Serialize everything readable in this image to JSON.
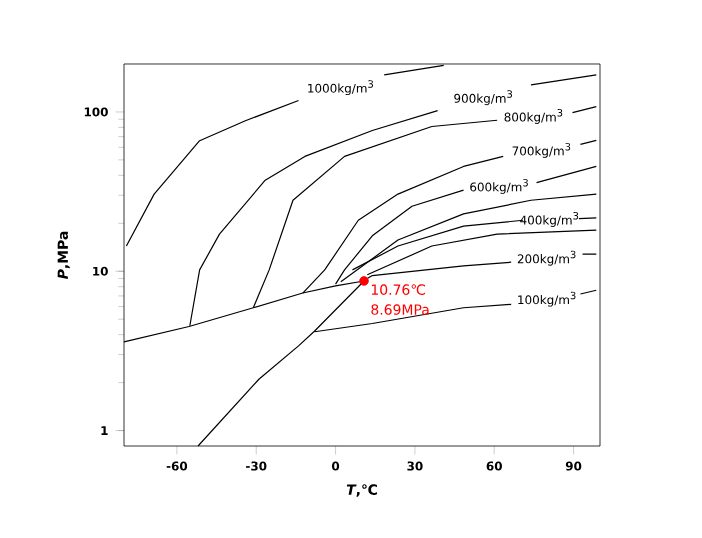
{
  "chart_data": {
    "type": "line",
    "xlabel": "*T*,℃",
    "ylabel": "*P*,MPa",
    "log": "y",
    "grid": false,
    "marker": "none",
    "line_style": "solid",
    "xlim": [
      -80,
      100
    ],
    "ylim": [
      0.8,
      200
    ],
    "xticks": [
      -60,
      -30,
      0,
      30,
      60,
      90
    ],
    "yticks": [
      1,
      10,
      100
    ],
    "series": [
      {
        "name": "1000kg/m$^{3}$",
        "color": "#000000",
        "x": [
          -79.1,
          -68.6,
          -51.4,
          -34.1,
          -14,
          2,
          18.4,
          40.9
        ],
        "values": [
          14.4,
          30.5,
          66,
          88,
          118,
          null,
          171,
          196
        ]
      },
      {
        "name": "900kg/m$^{3}$",
        "color": "#000000",
        "x": [
          -55.1,
          -51.4,
          -43.9,
          -26.6,
          -11.6,
          13.9,
          38.6,
          56,
          73.9,
          98.6
        ],
        "values": [
          4.55,
          10.2,
          17.1,
          37.3,
          52.6,
          76.5,
          102,
          null,
          148,
          171
        ]
      },
      {
        "name": "800kg/m$^{3}$",
        "color": "#000000",
        "x": [
          -31.1,
          -25.1,
          -16.1,
          3.4,
          36.4,
          61.1,
          75,
          89.6,
          98.6
        ],
        "values": [
          5.9,
          10.2,
          27.9,
          52.6,
          81,
          88.7,
          null,
          99,
          108
        ]
      },
      {
        "name": "700kg/m$^{3}$",
        "color": "#000000",
        "x": [
          -12.4,
          -4.1,
          8.6,
          23.6,
          48.4,
          63.4,
          78,
          92.6,
          98.6
        ],
        "values": [
          7.3,
          10.2,
          20.9,
          30.5,
          45.5,
          52.6,
          null,
          62.6,
          66.3
        ]
      },
      {
        "name": "600kg/m$^{3}$",
        "color": "#000000",
        "x": [
          0,
          3.4,
          13.9,
          28.9,
          48.4,
          62,
          76,
          98.6
        ],
        "values": [
          8.3,
          10.2,
          16.7,
          25.6,
          32.3,
          null,
          36,
          45.5
        ]
      },
      {
        "color": "#000000",
        "x": [
          2,
          23.6,
          48.4,
          73.9,
          98.6
        ],
        "values": [
          8.6,
          15.7,
          22.9,
          27.9,
          30.5
        ]
      },
      {
        "name": "400kg/m$^{3}$",
        "color": "#000000",
        "x": [
          6.4,
          23.6,
          48.4,
          70.9,
          81,
          92,
          98.6
        ],
        "values": [
          10.2,
          14.4,
          19.2,
          20.9,
          null,
          21.4,
          21.6
        ]
      },
      {
        "color": "#000000",
        "x": [
          12,
          36.4,
          61.1,
          98.6
        ],
        "values": [
          9.5,
          14.4,
          17.1,
          18.1
        ]
      },
      {
        "name": "200kg/m$^{3}$",
        "color": "#000000",
        "x": [
          12,
          13.9,
          48.4,
          66.4,
          80,
          93.4,
          98.6
        ],
        "values": [
          9.0,
          9.4,
          10.8,
          11.4,
          null,
          12.8,
          12.8
        ]
      },
      {
        "name": "100kg/m$^{3}$",
        "color": "#000000",
        "x": [
          -7.9,
          13.9,
          48.4,
          66.4,
          80,
          92.6,
          98.6
        ],
        "values": [
          4.17,
          4.7,
          5.9,
          6.2,
          null,
          7.2,
          7.6
        ]
      },
      {
        "color": "#000000",
        "x": [
          -80,
          -55.4,
          -31.1,
          -12.4,
          0,
          10.76
        ],
        "values": [
          3.6,
          4.5,
          5.9,
          7.3,
          8.1,
          8.69
        ]
      },
      {
        "color": "#000000",
        "x": [
          -52,
          -29,
          -14,
          -8,
          10.76
        ],
        "values": [
          0.8,
          2.1,
          3.4,
          4.2,
          8.69
        ]
      },
      {
        "type": "scatter",
        "marker": "circle",
        "color": "#ff0000",
        "x": [
          10.76
        ],
        "values": [
          8.69
        ]
      }
    ],
    "annotations": [
      {
        "text": "10.76℃",
        "x": 10.76,
        "y": 8.69
      },
      {
        "text": "8.69MPa",
        "x": 10.76,
        "y": 8.69
      }
    ]
  }
}
